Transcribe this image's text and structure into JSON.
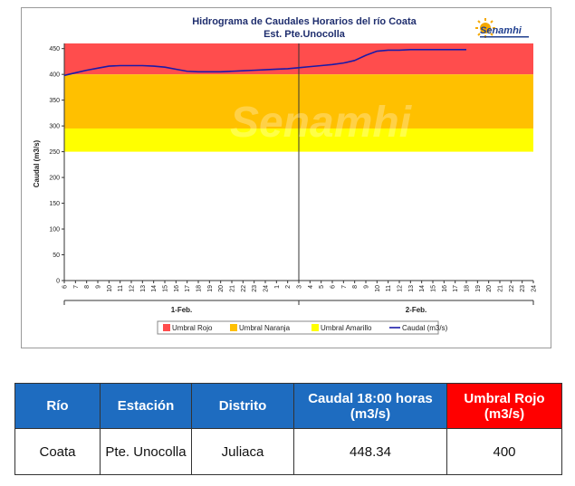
{
  "chart_data": {
    "type": "line",
    "title": "Hidrograma de Caudales Horarios del río Coata",
    "subtitle": "Est. Pte.Unocolla",
    "ylabel": "Caudal (m3/s)",
    "ylim": [
      0,
      460
    ],
    "yticks": [
      0,
      50,
      100,
      150,
      200,
      250,
      300,
      350,
      400,
      450
    ],
    "xlim": [
      0,
      42
    ],
    "hour_labels": [
      "6",
      "7",
      "8",
      "9",
      "10",
      "11",
      "12",
      "13",
      "14",
      "15",
      "16",
      "17",
      "18",
      "19",
      "20",
      "21",
      "22",
      "23",
      "24",
      "1",
      "2",
      "3",
      "4",
      "5",
      "6",
      "7",
      "8",
      "9",
      "10",
      "11",
      "12",
      "13",
      "14",
      "15",
      "16",
      "17",
      "18",
      "19",
      "20",
      "21",
      "22",
      "23",
      "24"
    ],
    "day_labels": [
      "1-Feb.",
      "2-Feb."
    ],
    "day_divider_x": 21,
    "thresholds": [
      {
        "name": "Umbral Rojo",
        "from": 400,
        "to": 460,
        "color": "#ff4d4d"
      },
      {
        "name": "Umbral Naranja",
        "from": 295,
        "to": 400,
        "color": "#ffc000"
      },
      {
        "name": "Umbral Amarillo",
        "from": 250,
        "to": 295,
        "color": "#ffff00"
      }
    ],
    "series": [
      {
        "name": "Caudal (m3/s)",
        "color": "#1a1aa8",
        "x": [
          0,
          1,
          2,
          3,
          4,
          5,
          6,
          7,
          8,
          9,
          10,
          11,
          12,
          13,
          14,
          15,
          16,
          17,
          18,
          19,
          20,
          21,
          22,
          23,
          24,
          25,
          26,
          27,
          28,
          29,
          30,
          31,
          32,
          33,
          34,
          35,
          36
        ],
        "y": [
          398,
          403,
          408,
          412,
          416,
          417,
          417,
          417,
          416,
          414,
          410,
          406,
          405,
          405,
          405,
          406,
          407,
          408,
          409,
          410,
          411,
          413,
          415,
          417,
          419,
          422,
          427,
          437,
          445,
          447,
          447,
          448,
          448,
          448,
          448,
          448,
          448
        ]
      }
    ],
    "legend_position": "bottom",
    "grid": false
  },
  "watermark": "Senamhi",
  "logo": {
    "name": "Senamhi",
    "icon": "sun-logo-icon"
  },
  "legend": [
    {
      "label": "Umbral Rojo",
      "color": "#ff4d4d",
      "kind": "box"
    },
    {
      "label": "Umbral Naranja",
      "color": "#ffc000",
      "kind": "box"
    },
    {
      "label": "Umbral Amarillo",
      "color": "#ffff00",
      "kind": "box"
    },
    {
      "label": "Caudal (m3/s)",
      "color": "#1a1aa8",
      "kind": "line"
    }
  ],
  "table": {
    "headers": [
      {
        "label": "Río"
      },
      {
        "label": "Estación"
      },
      {
        "label": "Distrito"
      },
      {
        "label": "Caudal 18:00 horas (m3/s)"
      },
      {
        "label": "Umbral Rojo (m3/s)"
      }
    ],
    "row": [
      "Coata",
      "Pte. Unocolla",
      "Juliaca",
      "448.34",
      "400"
    ]
  }
}
